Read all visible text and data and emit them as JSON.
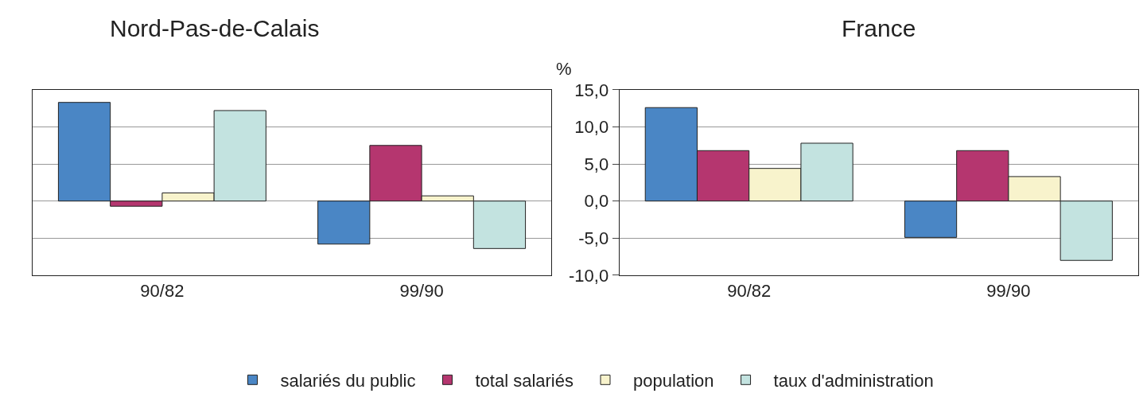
{
  "chart_data": [
    {
      "type": "bar",
      "title": "Nord-Pas-de-Calais",
      "categories": [
        "90/82",
        "99/90"
      ],
      "series": [
        {
          "name": "salariés du public",
          "color": "#4a86c5",
          "values": [
            13.3,
            -5.8
          ]
        },
        {
          "name": "total salariés",
          "color": "#b5366f",
          "values": [
            -0.7,
            7.5
          ]
        },
        {
          "name": "population",
          "color": "#f8f3cc",
          "values": [
            1.1,
            0.7
          ]
        },
        {
          "name": "taux d'administration",
          "color": "#c3e3e0",
          "values": [
            12.2,
            -6.4
          ]
        }
      ],
      "ylim": [
        -10,
        15
      ],
      "yticks": [
        -10,
        -5,
        0,
        5,
        10,
        15
      ],
      "grid": "y",
      "tick_labels": "x",
      "legend": "bottom"
    },
    {
      "type": "bar",
      "title": "France",
      "ylabel": "%",
      "categories": [
        "90/82",
        "99/90"
      ],
      "series": [
        {
          "color": "#4a86c5",
          "values": [
            12.6,
            -4.9
          ]
        },
        {
          "color": "#b5366f",
          "values": [
            6.8,
            6.8
          ]
        },
        {
          "color": "#f8f3cc",
          "values": [
            4.4,
            3.3
          ]
        },
        {
          "color": "#c3e3e0",
          "values": [
            7.8,
            -8.0
          ]
        }
      ],
      "ylim": [
        -10,
        15
      ],
      "yticks": [
        {
          "value": -10,
          "label": "-10,0"
        },
        {
          "value": -5,
          "label": "-5,0"
        },
        {
          "value": 0,
          "label": "0,0"
        },
        {
          "value": 5,
          "label": "5,0"
        },
        {
          "value": 10,
          "label": "10,0"
        },
        {
          "value": 15,
          "label": "15,0"
        }
      ],
      "grid": "y"
    }
  ]
}
